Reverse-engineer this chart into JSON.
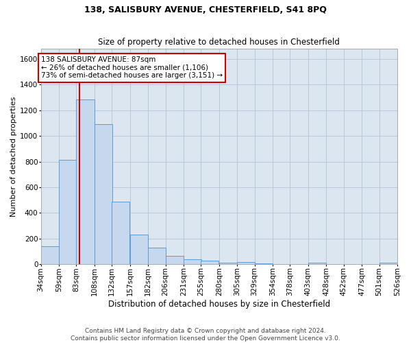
{
  "title": "138, SALISBURY AVENUE, CHESTERFIELD, S41 8PQ",
  "subtitle": "Size of property relative to detached houses in Chesterfield",
  "xlabel": "Distribution of detached houses by size in Chesterfield",
  "ylabel": "Number of detached properties",
  "footer_line1": "Contains HM Land Registry data © Crown copyright and database right 2024.",
  "footer_line2": "Contains public sector information licensed under the Open Government Licence v3.0.",
  "bar_color": "#c5d8ed",
  "bar_edge_color": "#5b9bd5",
  "grid_color": "#b8c8d8",
  "background_color": "#dce6f0",
  "vline_x": 87,
  "vline_color": "#cc0000",
  "annotation_line1": "138 SALISBURY AVENUE: 87sqm",
  "annotation_line2": "← 26% of detached houses are smaller (1,106)",
  "annotation_line3": "73% of semi-detached houses are larger (3,151) →",
  "annotation_box_color": "#cc0000",
  "bins": [
    34,
    59,
    83,
    108,
    132,
    157,
    182,
    206,
    231,
    255,
    280,
    305,
    329,
    354,
    378,
    403,
    428,
    452,
    477,
    501,
    526
  ],
  "bin_labels": [
    "34sqm",
    "59sqm",
    "83sqm",
    "108sqm",
    "132sqm",
    "157sqm",
    "182sqm",
    "206sqm",
    "231sqm",
    "255sqm",
    "280sqm",
    "305sqm",
    "329sqm",
    "354sqm",
    "378sqm",
    "403sqm",
    "428sqm",
    "452sqm",
    "477sqm",
    "501sqm",
    "526sqm"
  ],
  "counts": [
    140,
    815,
    1285,
    1090,
    490,
    232,
    128,
    67,
    40,
    26,
    14,
    16,
    5,
    0,
    0,
    14,
    0,
    0,
    0,
    13,
    0
  ],
  "ylim": [
    0,
    1680
  ],
  "yticks": [
    0,
    200,
    400,
    600,
    800,
    1000,
    1200,
    1400,
    1600
  ],
  "title_fontsize": 9,
  "subtitle_fontsize": 8.5,
  "xlabel_fontsize": 8.5,
  "ylabel_fontsize": 8,
  "tick_fontsize": 7.5,
  "annotation_fontsize": 7.5,
  "footer_fontsize": 6.5
}
